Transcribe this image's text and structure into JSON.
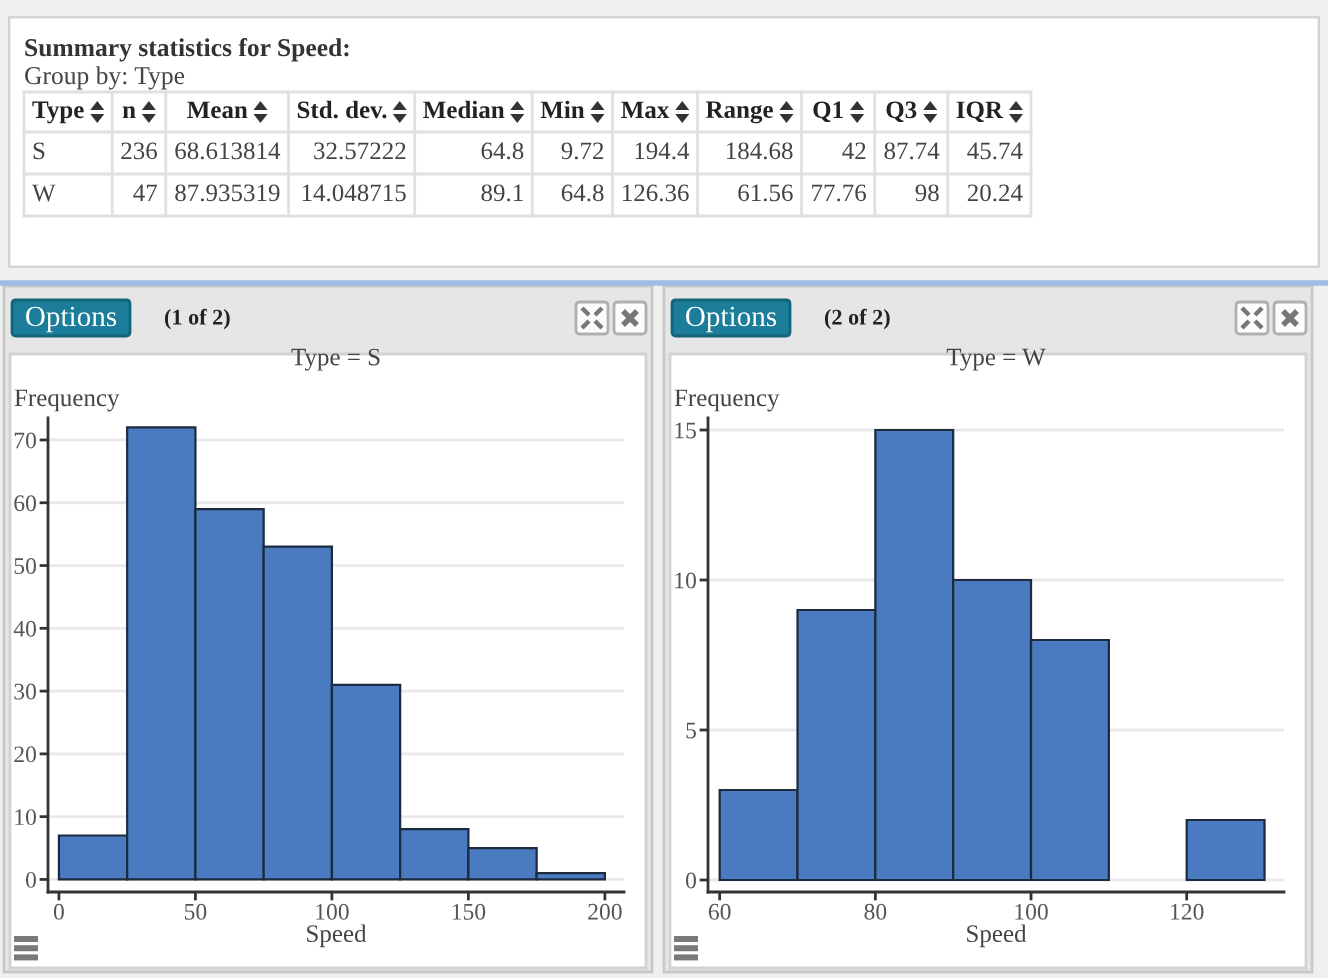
{
  "chart_data": [
    {
      "type": "other",
      "title": "Summary statistics for Speed:",
      "subtitle": "Group by: Type",
      "categories": [
        "Type",
        "n",
        "Mean",
        "Std. dev.",
        "Median",
        "Min",
        "Max",
        "Range",
        "Q1",
        "Q3",
        "IQR"
      ],
      "annotations": [
        "S",
        "236",
        "68.613814",
        "32.57222",
        "64.8",
        "9.72",
        "194.4",
        "184.68",
        "42",
        "87.74",
        "45.74",
        "W",
        "47",
        "87.935319",
        "14.048715",
        "89.1",
        "64.8",
        "126.36",
        "61.56",
        "77.76",
        "98",
        "20.24"
      ]
    },
    {
      "type": "histogram",
      "title": "Type = S",
      "xlabel": "Speed",
      "ylabel": "Frequency",
      "bins": [
        0,
        25,
        50,
        75,
        100,
        125,
        150,
        175,
        200
      ],
      "values": [
        7,
        72,
        59,
        53,
        31,
        8,
        5,
        1
      ],
      "color": "#4a7abf",
      "xlim": [
        -4,
        207
      ],
      "ylim": [
        -2,
        73.5
      ],
      "xticks": [
        0,
        50,
        100,
        150,
        200
      ],
      "yticks": [
        0,
        10,
        20,
        30,
        40,
        50,
        60,
        70
      ],
      "grid": "y",
      "annotations": [
        "Options",
        "(1 of 2)"
      ]
    },
    {
      "type": "histogram",
      "title": "Type = W",
      "xlabel": "Speed",
      "ylabel": "Frequency",
      "bins": [
        60,
        70,
        80,
        90,
        100,
        110,
        120,
        130
      ],
      "values": [
        3,
        9,
        15,
        10,
        8,
        0,
        2
      ],
      "color": "#4a7abf",
      "xlim": [
        58.5,
        132.5
      ],
      "ylim": [
        -0.4,
        15.4
      ],
      "xticks": [
        60,
        80,
        100,
        120
      ],
      "yticks": [
        0,
        5,
        10,
        15
      ],
      "grid": "y",
      "annotations": [
        "Options",
        "(2 of 2)"
      ]
    }
  ]
}
